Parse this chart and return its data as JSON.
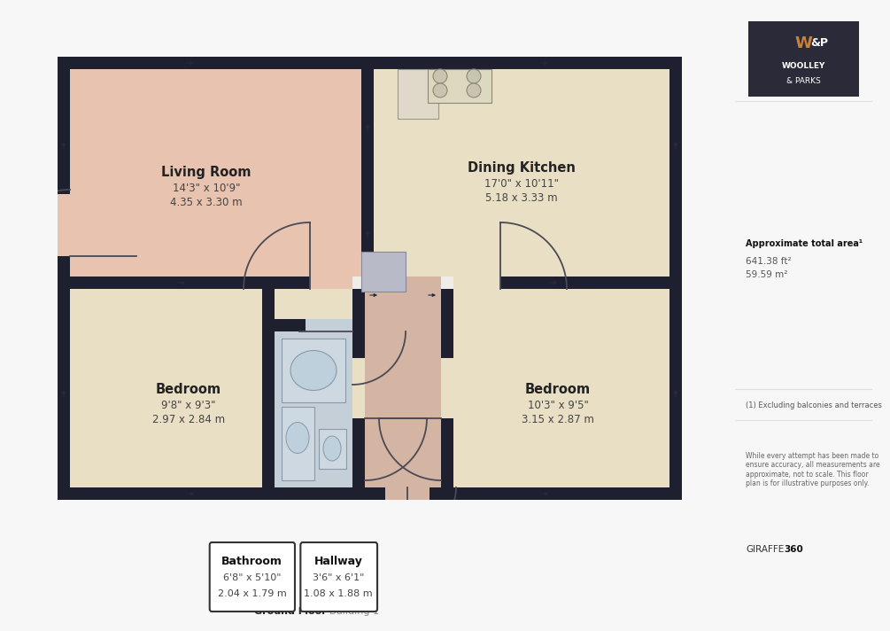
{
  "bg_color": "#f7f7f7",
  "wall_color": "#1e2030",
  "floor_color": "#f0ede8",
  "room_colors": {
    "living": "#e8c4b0",
    "kitchen": "#e8dfc5",
    "bedroom": "#e8dfc5",
    "hallway": "#d4b4a2",
    "bathroom": "#c5cfd8",
    "stair": "#b8bac8"
  },
  "rooms": {
    "living_room": {
      "label": "Living Room",
      "dims": "14'3\" x 10'9\"",
      "metric": "4.35 x 3.30 m"
    },
    "dining_kitchen": {
      "label": "Dining Kitchen",
      "dims": "17'0\" x 10'11\"",
      "metric": "5.18 x 3.33 m"
    },
    "bedroom1": {
      "label": "Bedroom",
      "dims": "9'8\" x 9'3\"",
      "metric": "2.97 x 2.84 m"
    },
    "bedroom2": {
      "label": "Bedroom",
      "dims": "10'3\" x 9'5\"",
      "metric": "3.15 x 2.87 m"
    },
    "bathroom": {
      "label": "Bathroom",
      "dims": "6'8\" x 5'10\"",
      "metric": "2.04 x 1.79 m"
    },
    "hallway": {
      "label": "Hallway",
      "dims": "3'6\" x 6'1\"",
      "metric": "1.08 x 1.88 m"
    }
  },
  "area_title": "Approximate total area¹",
  "area_ft": "641.38 ft²",
  "area_m": "59.59 m²",
  "note1": "(1) Excluding balconies and terraces",
  "note2": "While every attempt has been made to\nensure accuracy, all measurements are\napproximate, not to scale. This floor\nplan is for illustrative purposes only.",
  "brand_normal": "GIRAFFE",
  "brand_bold": "360",
  "footer1": "Ground Floor",
  "footer2": "Building 1"
}
